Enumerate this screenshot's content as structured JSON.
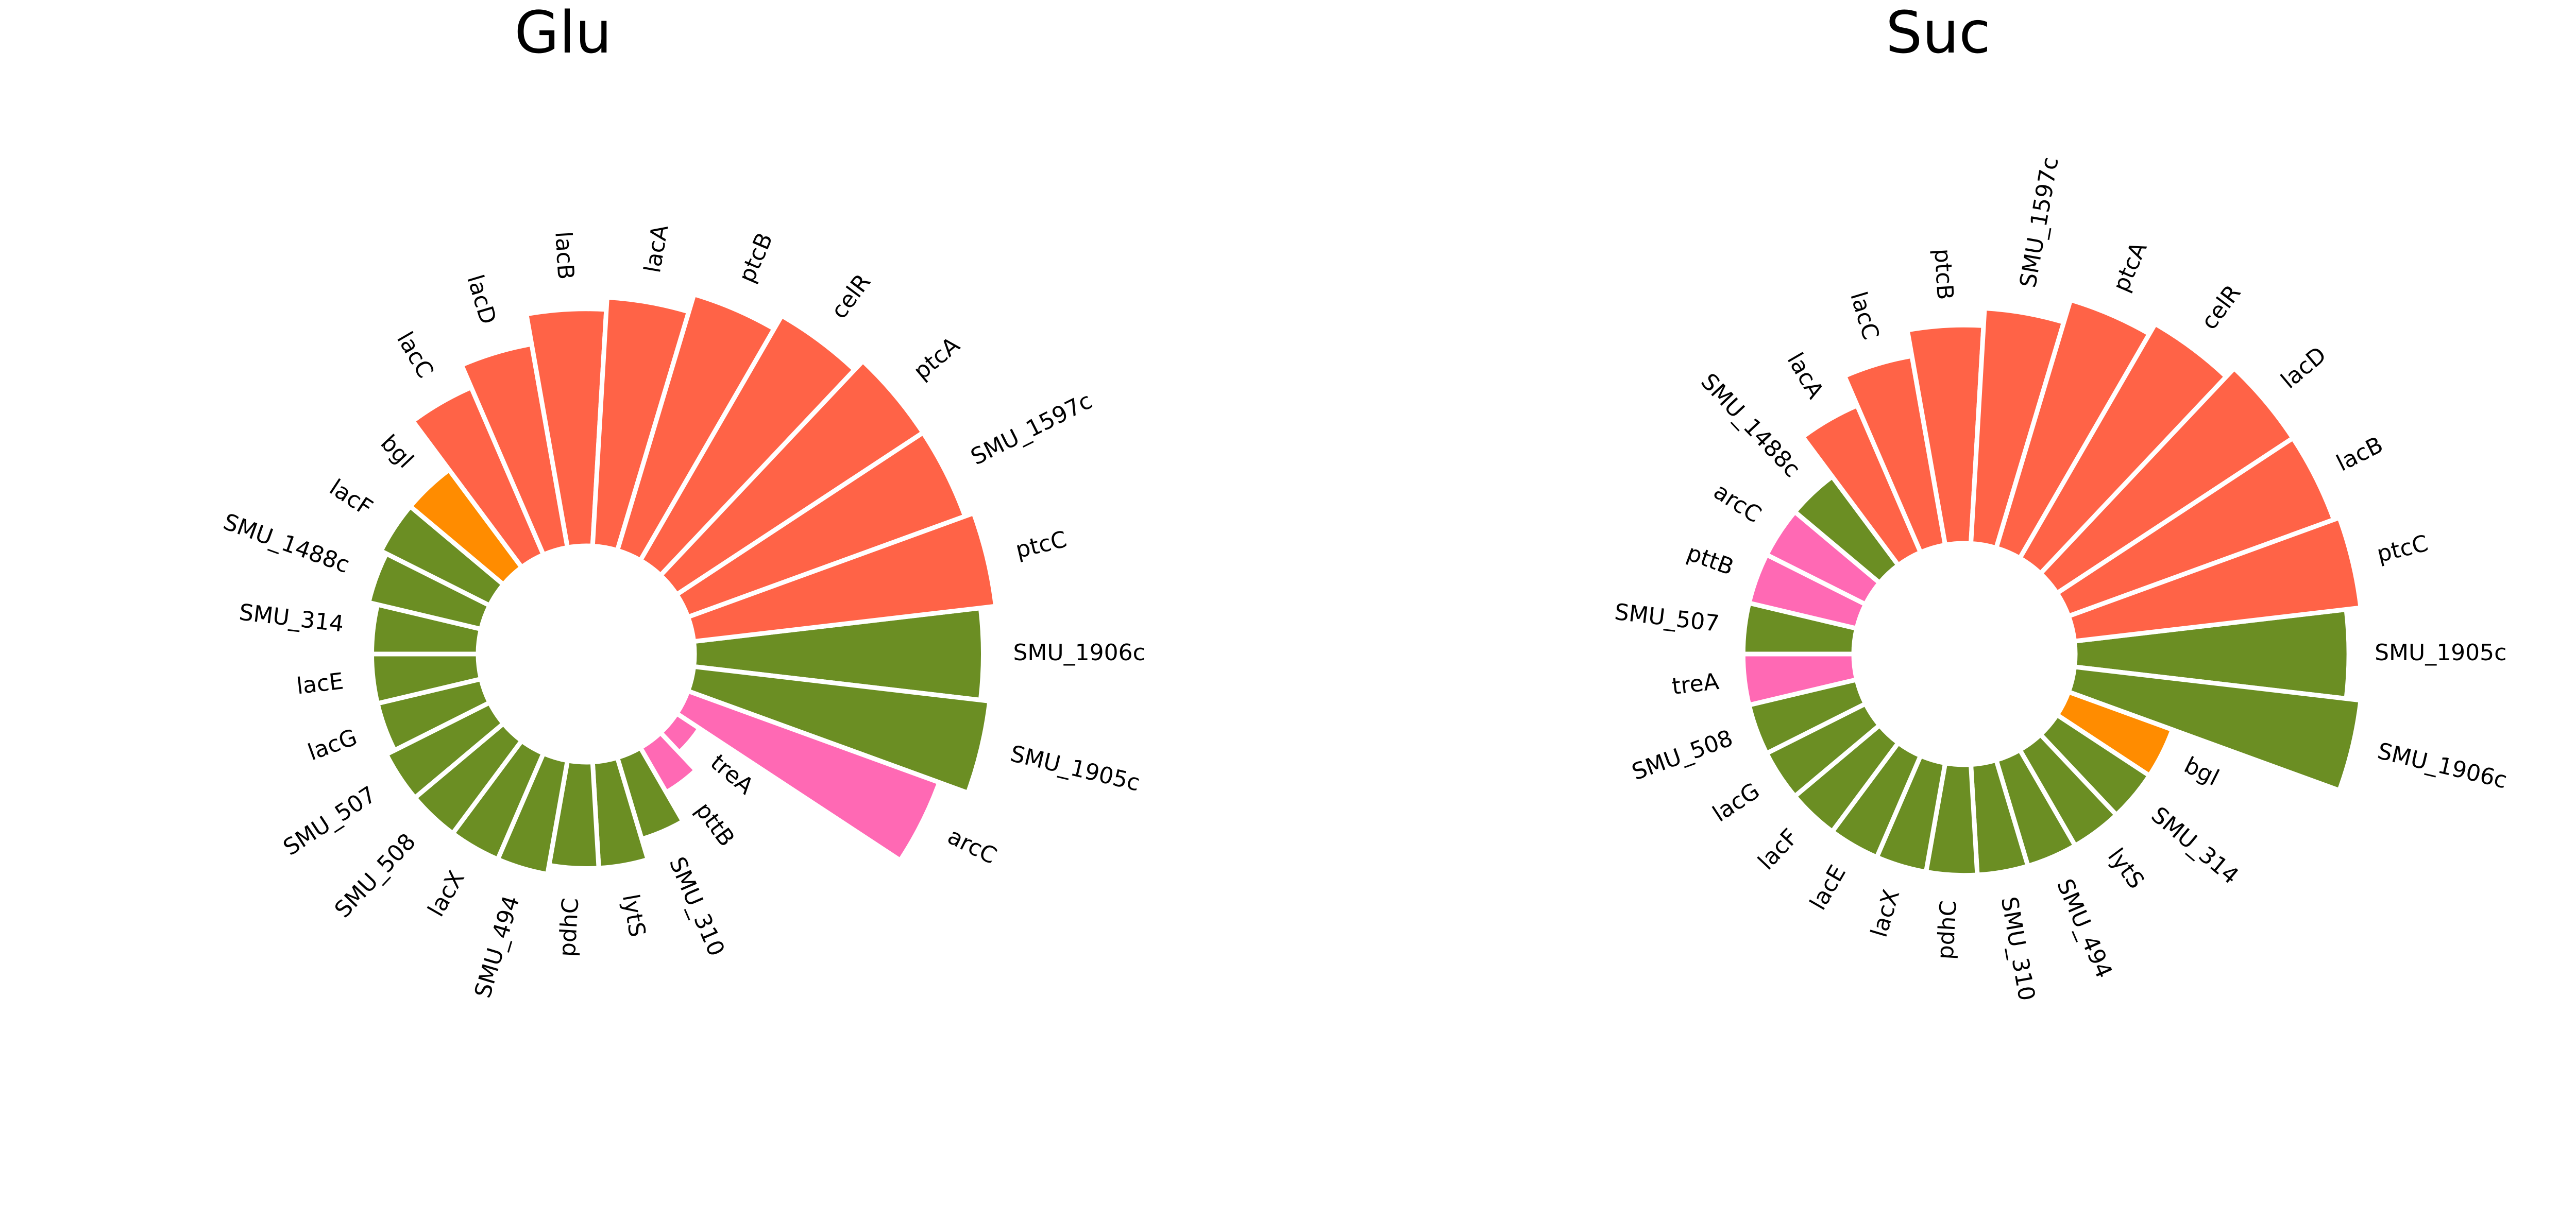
{
  "colors": {
    "green": "#6B8E23",
    "tomato": "#FF6347",
    "orange": "#FF8C00",
    "pink": "#FF69B4",
    "label": "#000000",
    "background": "#FFFFFF"
  },
  "chart_data": [
    {
      "type": "circular-bar",
      "title": "Glu",
      "value_scale": "relative",
      "start_angle_deg": 0,
      "direction": "clockwise",
      "categories": [
        "SMU_1906c",
        "SMU_1905c",
        "arcC",
        "treA",
        "pttB",
        "SMU_310",
        "lytS",
        "pdhC",
        "SMU_494",
        "lacX",
        "SMU_508",
        "SMU_507",
        "lacG",
        "lacE",
        "SMU_314",
        "SMU_1488c",
        "lacF",
        "bgl",
        "lacC",
        "lacD",
        "lacB",
        "lacA",
        "ptcB",
        "celR",
        "ptcA",
        "SMU_1597c",
        "ptcC"
      ],
      "values": [
        0.95,
        0.98,
        0.88,
        0.09,
        0.17,
        0.28,
        0.35,
        0.35,
        0.38,
        0.38,
        0.38,
        0.38,
        0.35,
        0.35,
        0.35,
        0.38,
        0.4,
        0.4,
        0.6,
        0.68,
        0.78,
        0.82,
        0.88,
        0.93,
        0.97,
        0.97,
        1.0
      ],
      "colors": [
        "green",
        "green",
        "pink",
        "pink",
        "pink",
        "green",
        "green",
        "green",
        "green",
        "green",
        "green",
        "green",
        "green",
        "green",
        "green",
        "green",
        "green",
        "orange",
        "tomato",
        "tomato",
        "tomato",
        "tomato",
        "tomato",
        "tomato",
        "tomato",
        "tomato",
        "tomato"
      ]
    },
    {
      "type": "circular-bar",
      "title": "Suc",
      "value_scale": "relative",
      "start_angle_deg": 0,
      "direction": "clockwise",
      "categories": [
        "SMU_1905c",
        "SMU_1906c",
        "bgl",
        "SMU_314",
        "lytS",
        "SMU_494",
        "SMU_310",
        "pdhC",
        "lacX",
        "lacE",
        "lacF",
        "lacG",
        "SMU_508",
        "treA",
        "SMU_507",
        "pttB",
        "arcC",
        "SMU_1488c",
        "lacA",
        "lacC",
        "ptcB",
        "SMU_1597c",
        "ptcA",
        "celR",
        "lacD",
        "lacB",
        "ptcC"
      ],
      "values": [
        0.94,
        0.99,
        0.38,
        0.38,
        0.38,
        0.38,
        0.38,
        0.38,
        0.38,
        0.38,
        0.38,
        0.38,
        0.38,
        0.38,
        0.38,
        0.38,
        0.38,
        0.38,
        0.55,
        0.66,
        0.75,
        0.81,
        0.89,
        0.93,
        0.97,
        0.97,
        0.99
      ],
      "colors": [
        "green",
        "green",
        "orange",
        "green",
        "green",
        "green",
        "green",
        "green",
        "green",
        "green",
        "green",
        "green",
        "green",
        "pink",
        "green",
        "pink",
        "pink",
        "green",
        "tomato",
        "tomato",
        "tomato",
        "tomato",
        "tomato",
        "tomato",
        "tomato",
        "tomato",
        "tomato"
      ]
    }
  ]
}
